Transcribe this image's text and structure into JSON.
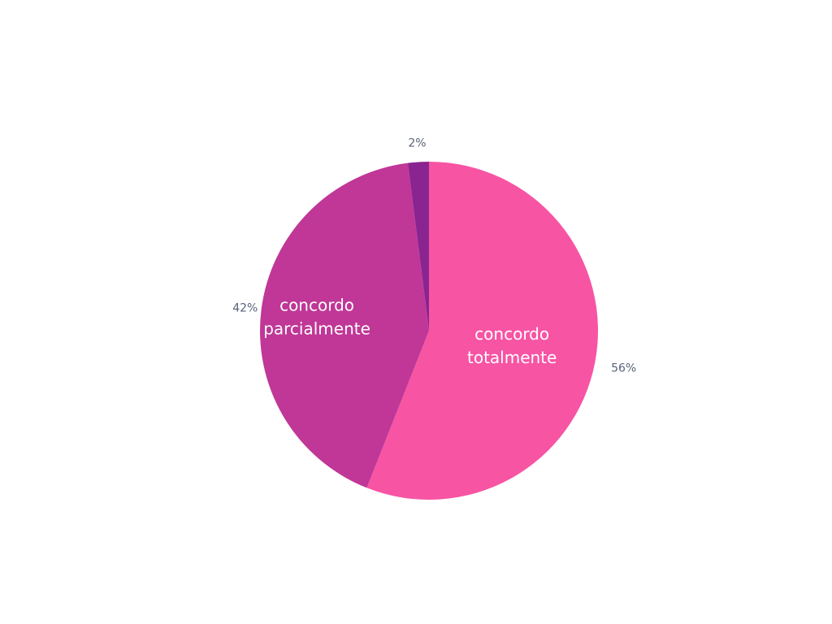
{
  "chart_data": {
    "type": "pie",
    "title": "",
    "legend": "none",
    "slices": [
      {
        "label": "concordo totalmente",
        "value": 56,
        "value_label": "56%",
        "color": "#f754a4",
        "inner_lines": [
          "concordo",
          "totalmente"
        ]
      },
      {
        "label": "concordo parcialmente",
        "value": 42,
        "value_label": "42%",
        "color": "#c03797",
        "inner_lines": [
          "concordo",
          "parcialmente"
        ]
      },
      {
        "label": "",
        "value": 2,
        "value_label": "2%",
        "color": "#8a2491",
        "inner_lines": []
      }
    ]
  }
}
